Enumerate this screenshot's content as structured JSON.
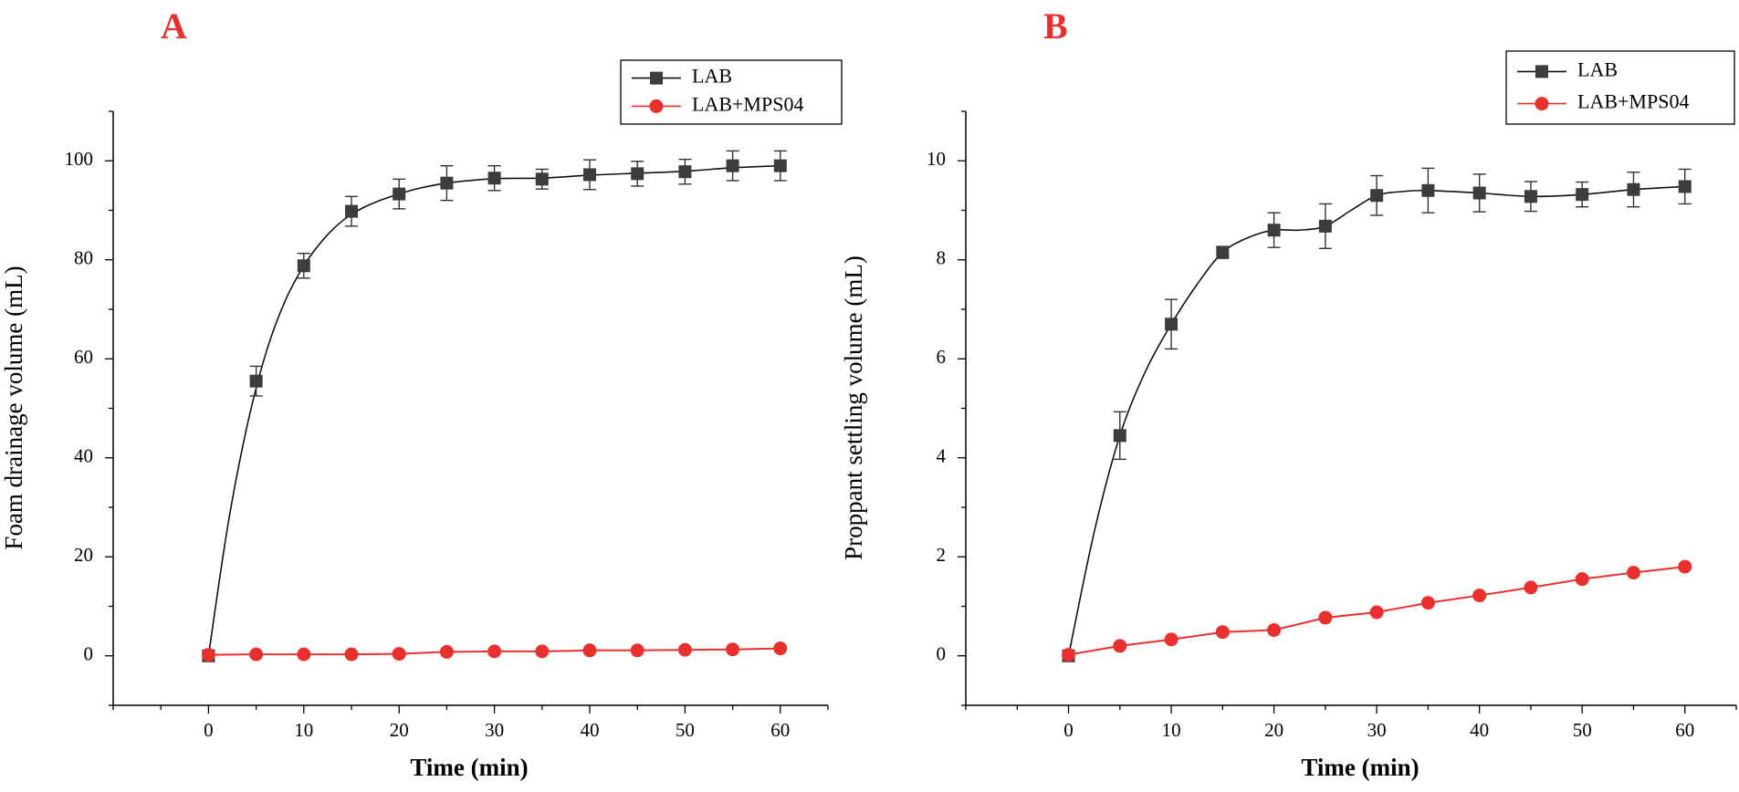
{
  "chart_data": [
    {
      "type": "line",
      "panel": "A",
      "xlabel": "Time (min)",
      "ylabel": "Foam drainage volume (mL)",
      "xlim": [
        -10,
        65
      ],
      "ylim": [
        -10,
        110
      ],
      "xticks": [
        0,
        10,
        20,
        30,
        40,
        50,
        60
      ],
      "yticks": [
        0,
        20,
        40,
        60,
        80,
        100
      ],
      "x": [
        0,
        5,
        10,
        15,
        20,
        25,
        30,
        35,
        40,
        45,
        50,
        55,
        60
      ],
      "legend_position": "top-right",
      "series": [
        {
          "name": "LAB",
          "color": "#3c3c3c",
          "marker": "square",
          "values": [
            0,
            55.5,
            78.8,
            89.8,
            93.3,
            95.5,
            96.5,
            96.3,
            97.2,
            97.4,
            97.8,
            99.0,
            99.0
          ],
          "errors": [
            0,
            3.0,
            2.5,
            3.0,
            3.0,
            3.5,
            2.5,
            2.0,
            3.0,
            2.5,
            2.5,
            3.0,
            3.0
          ],
          "curve": [
            [
              0,
              0
            ],
            [
              2,
              26
            ],
            [
              4,
              46
            ],
            [
              6,
              61
            ],
            [
              8,
              71.5
            ],
            [
              10,
              78.8
            ],
            [
              12,
              84
            ],
            [
              14,
              87.8
            ],
            [
              16,
              90.3
            ],
            [
              18,
              92
            ],
            [
              20,
              93.3
            ],
            [
              22,
              94.4
            ],
            [
              25,
              95.5
            ],
            [
              30,
              96.4
            ],
            [
              35,
              96.5
            ],
            [
              40,
              97.1
            ],
            [
              45,
              97.5
            ],
            [
              50,
              97.9
            ],
            [
              55,
              98.6
            ],
            [
              60,
              99.0
            ]
          ]
        },
        {
          "name": "LAB+MPS04",
          "color": "#e8312f",
          "marker": "circle",
          "values": [
            0.2,
            0.3,
            0.3,
            0.3,
            0.4,
            0.8,
            0.9,
            0.9,
            1.1,
            1.1,
            1.2,
            1.3,
            1.5
          ],
          "errors": [
            0,
            0,
            0,
            0,
            0,
            0,
            0,
            0,
            0,
            0,
            0,
            0,
            0
          ]
        }
      ]
    },
    {
      "type": "line",
      "panel": "B",
      "xlabel": "Time (min)",
      "ylabel": "Proppant settling volume (mL)",
      "xlim": [
        -10,
        65
      ],
      "ylim": [
        -1,
        11
      ],
      "xticks": [
        0,
        10,
        20,
        30,
        40,
        50,
        60
      ],
      "yticks": [
        0,
        2,
        4,
        6,
        8,
        10
      ],
      "x": [
        0,
        5,
        10,
        15,
        20,
        25,
        30,
        35,
        40,
        45,
        50,
        55,
        60
      ],
      "legend_position": "top-right",
      "series": [
        {
          "name": "LAB",
          "color": "#3c3c3c",
          "marker": "square",
          "values": [
            0,
            4.45,
            6.7,
            8.15,
            8.6,
            8.68,
            9.3,
            9.4,
            9.35,
            9.28,
            9.32,
            9.42,
            9.48
          ],
          "errors": [
            0,
            0.48,
            0.5,
            0.12,
            0.35,
            0.45,
            0.4,
            0.45,
            0.38,
            0.3,
            0.25,
            0.35,
            0.35
          ],
          "curve": [
            [
              0,
              0
            ],
            [
              2.5,
              2.5
            ],
            [
              5,
              4.45
            ],
            [
              7.5,
              5.75
            ],
            [
              10,
              6.7
            ],
            [
              12.5,
              7.5
            ],
            [
              15,
              8.15
            ],
            [
              17.5,
              8.45
            ],
            [
              20,
              8.6
            ],
            [
              22.5,
              8.6
            ],
            [
              25,
              8.68
            ],
            [
              27.5,
              9.0
            ],
            [
              30,
              9.3
            ],
            [
              32.5,
              9.38
            ],
            [
              35,
              9.4
            ],
            [
              40,
              9.35
            ],
            [
              45,
              9.28
            ],
            [
              50,
              9.32
            ],
            [
              55,
              9.42
            ],
            [
              60,
              9.48
            ]
          ]
        },
        {
          "name": "LAB+MPS04",
          "color": "#e8312f",
          "marker": "circle",
          "values": [
            0.02,
            0.2,
            0.33,
            0.48,
            0.52,
            0.77,
            0.88,
            1.07,
            1.22,
            1.38,
            1.55,
            1.68,
            1.8
          ],
          "errors": [
            0,
            0,
            0,
            0,
            0,
            0,
            0,
            0,
            0,
            0,
            0,
            0,
            0
          ]
        }
      ]
    }
  ]
}
